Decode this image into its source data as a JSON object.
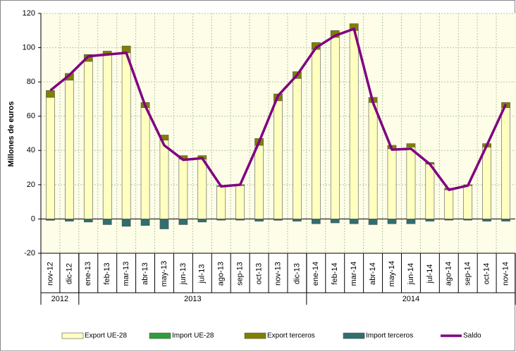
{
  "chart_data": {
    "type": "bar",
    "y_label": "Millones de euros",
    "categories": [
      "nov-12",
      "dic-12",
      "ene-13",
      "feb-13",
      "mar-13",
      "abr-13",
      "may-13",
      "jun-13",
      "jul-13",
      "ago-13",
      "sep-13",
      "oct-13",
      "nov-13",
      "dic-13",
      "ene-14",
      "feb-14",
      "mar-14",
      "abr-14",
      "may-14",
      "jun-14",
      "jul-14",
      "ago-14",
      "sep-14",
      "oct-14",
      "nov-14"
    ],
    "x_groups": [
      {
        "label": "2012",
        "span": 2
      },
      {
        "label": "2013",
        "span": 12
      },
      {
        "label": "2014",
        "span": 11
      }
    ],
    "series": [
      {
        "name": "Export UE-28",
        "color": "#ffffc0",
        "values": [
          71,
          81,
          92,
          96,
          97,
          65,
          46,
          35,
          35,
          19,
          19.5,
          43,
          69,
          82,
          99,
          106,
          110,
          68,
          41,
          42,
          32,
          17,
          19.5,
          42,
          65
        ]
      },
      {
        "name": "Import UE-28",
        "color": "#2e9e3a",
        "values": [
          -0.3,
          -0.3,
          -0.3,
          -0.3,
          -0.3,
          -0.3,
          -0.3,
          -0.3,
          -0.3,
          -0.2,
          -0.2,
          -0.3,
          -0.3,
          -0.3,
          -0.3,
          -0.3,
          -0.3,
          -0.3,
          -0.3,
          -0.3,
          -0.3,
          -0.2,
          -0.2,
          -0.3,
          -0.3
        ]
      },
      {
        "name": "Export terceros",
        "color": "#808000",
        "values": [
          4,
          4,
          4,
          2,
          4,
          3,
          3,
          2,
          2,
          0.5,
          0.5,
          4,
          4,
          4,
          4,
          4,
          4,
          3,
          2,
          2,
          1,
          1,
          0.5,
          2,
          3
        ]
      },
      {
        "name": "Import terceros",
        "color": "#2f6f6f",
        "values": [
          -0.5,
          -1,
          -1.5,
          -3,
          -4,
          -3.5,
          -5.5,
          -3,
          -1.5,
          -0.5,
          -0.5,
          -1,
          -0.5,
          -1,
          -2.5,
          -2,
          -2.5,
          -3,
          -2.5,
          -2.5,
          -1,
          -0.5,
          -0.5,
          -1,
          -1
        ]
      },
      {
        "name": "Saldo",
        "color": "#800080",
        "type": "line",
        "values": [
          75,
          84,
          95,
          96,
          97,
          66,
          43,
          34.5,
          35.5,
          19,
          20,
          45,
          72,
          84,
          100,
          107,
          111,
          68,
          40.5,
          41,
          32,
          17,
          19.5,
          43,
          67
        ]
      }
    ],
    "ylim": [
      -20,
      120
    ],
    "yticks": [
      -20,
      0,
      20,
      40,
      60,
      80,
      100,
      120
    ],
    "grid": true,
    "legend": "bottom"
  }
}
